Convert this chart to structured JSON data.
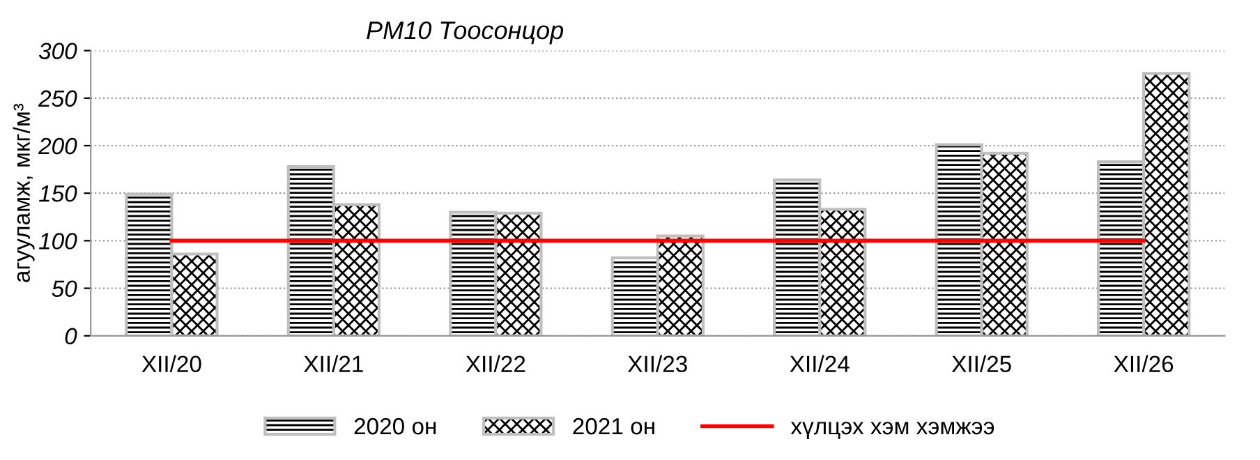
{
  "chart_data": {
    "type": "bar",
    "title": "PM10 Тоосонцор",
    "ylabel": "агууламж, мкг/м³",
    "categories": [
      "XII/20",
      "XII/21",
      "XII/22",
      "XII/23",
      "XII/24",
      "XII/25",
      "XII/26"
    ],
    "series": [
      {
        "name": "2020 он",
        "color": "#bfbfbf",
        "values": [
          149,
          178,
          130,
          82,
          164,
          201,
          183
        ]
      },
      {
        "name": "2021 он",
        "color": "#bfbfbf",
        "values": [
          86,
          138,
          129,
          105,
          133,
          192,
          276
        ]
      },
      {
        "name": "хүлцэх хэм хэмжээ",
        "type": "line",
        "color": "#ff0000",
        "values": [
          100,
          100,
          100,
          100,
          100,
          100,
          100
        ]
      }
    ],
    "ylim": [
      0,
      300
    ],
    "yticks": [
      0,
      50,
      100,
      150,
      200,
      250,
      300
    ],
    "grid": "y",
    "legend": "bottom"
  }
}
